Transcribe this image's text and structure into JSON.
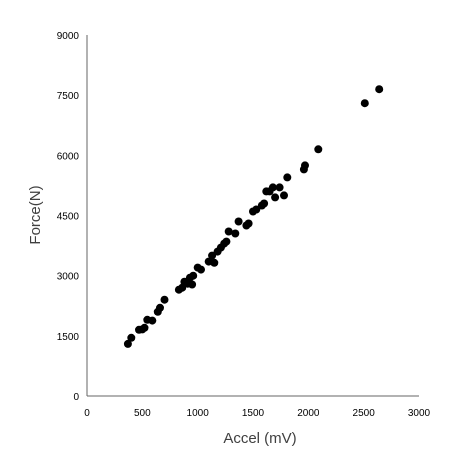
{
  "chart_data": {
    "type": "scatter",
    "title": "",
    "xlabel": "Accel (mV)",
    "ylabel": "Force(N)",
    "xlim": [
      0,
      3000
    ],
    "ylim": [
      0,
      9000
    ],
    "xticks": [
      0,
      500,
      1000,
      1500,
      2000,
      2500,
      3000
    ],
    "yticks": [
      0,
      1500,
      3000,
      4500,
      6000,
      7500,
      9000
    ],
    "xtick_labels": [
      "0",
      "500",
      "1000",
      "1500",
      "2000",
      "2500",
      "3000"
    ],
    "ytick_labels": [
      "0",
      "1500",
      "3000",
      "4500",
      "6000",
      "7500",
      "9000"
    ],
    "grid": false,
    "legend": "none",
    "marker_color": "#000000",
    "series": [
      {
        "points": [
          [
            370,
            1300
          ],
          [
            400,
            1450
          ],
          [
            470,
            1650
          ],
          [
            500,
            1660
          ],
          [
            520,
            1700
          ],
          [
            545,
            1900
          ],
          [
            590,
            1880
          ],
          [
            640,
            2100
          ],
          [
            660,
            2200
          ],
          [
            700,
            2400
          ],
          [
            830,
            2650
          ],
          [
            860,
            2700
          ],
          [
            880,
            2850
          ],
          [
            910,
            2800
          ],
          [
            930,
            2950
          ],
          [
            950,
            2780
          ],
          [
            960,
            3000
          ],
          [
            1000,
            3200
          ],
          [
            1030,
            3150
          ],
          [
            1100,
            3350
          ],
          [
            1130,
            3500
          ],
          [
            1150,
            3320
          ],
          [
            1180,
            3600
          ],
          [
            1210,
            3700
          ],
          [
            1240,
            3800
          ],
          [
            1260,
            3850
          ],
          [
            1280,
            4100
          ],
          [
            1340,
            4050
          ],
          [
            1370,
            4350
          ],
          [
            1440,
            4250
          ],
          [
            1460,
            4300
          ],
          [
            1500,
            4600
          ],
          [
            1530,
            4650
          ],
          [
            1580,
            4750
          ],
          [
            1600,
            4800
          ],
          [
            1620,
            5100
          ],
          [
            1650,
            5100
          ],
          [
            1680,
            5200
          ],
          [
            1700,
            4950
          ],
          [
            1740,
            5200
          ],
          [
            1780,
            5000
          ],
          [
            1810,
            5450
          ],
          [
            1960,
            5650
          ],
          [
            1970,
            5750
          ],
          [
            2090,
            6150
          ],
          [
            2510,
            7300
          ],
          [
            2640,
            7650
          ]
        ]
      }
    ]
  }
}
